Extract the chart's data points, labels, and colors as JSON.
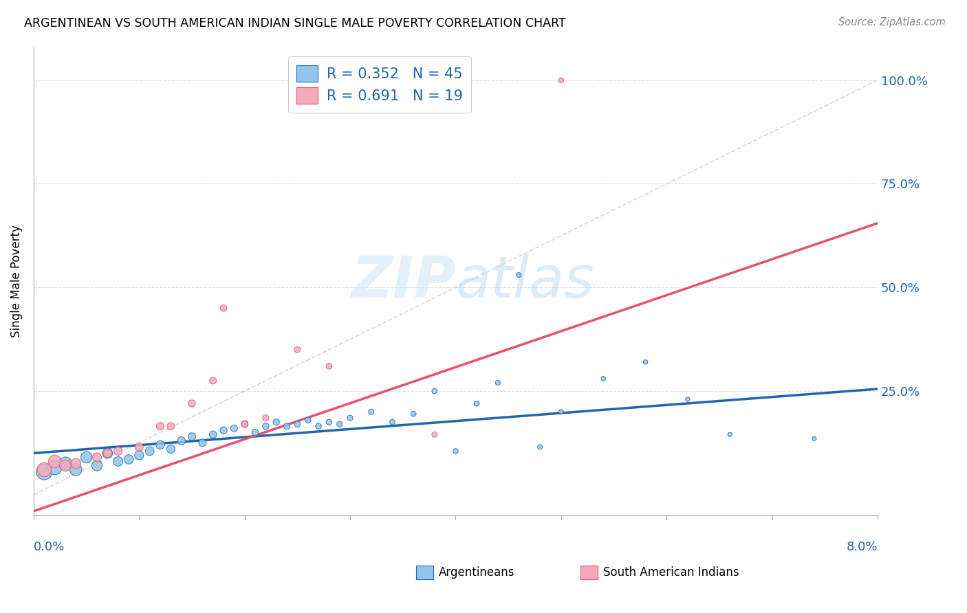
{
  "title": "ARGENTINEAN VS SOUTH AMERICAN INDIAN SINGLE MALE POVERTY CORRELATION CHART",
  "source": "Source: ZipAtlas.com",
  "ylabel": "Single Male Poverty",
  "xlim": [
    0.0,
    0.08
  ],
  "ylim": [
    -0.05,
    1.08
  ],
  "ytick_values": [
    0.0,
    0.25,
    0.5,
    0.75,
    1.0
  ],
  "ytick_labels": [
    "",
    "25.0%",
    "50.0%",
    "75.0%",
    "100.0%"
  ],
  "blue_color": "#92C5EC",
  "pink_color": "#F4AABB",
  "blue_line_color": "#2166AC",
  "pink_line_color": "#E8506A",
  "dashed_line_color": "#C8C8C8",
  "watermark_color": "#D0E8F8",
  "grid_color": "#DDDDDD",
  "argentineans": [
    [
      0.001,
      0.055
    ],
    [
      0.002,
      0.065
    ],
    [
      0.003,
      0.075
    ],
    [
      0.004,
      0.06
    ],
    [
      0.005,
      0.09
    ],
    [
      0.006,
      0.07
    ],
    [
      0.007,
      0.1
    ],
    [
      0.008,
      0.08
    ],
    [
      0.009,
      0.085
    ],
    [
      0.01,
      0.095
    ],
    [
      0.011,
      0.105
    ],
    [
      0.012,
      0.12
    ],
    [
      0.013,
      0.11
    ],
    [
      0.014,
      0.13
    ],
    [
      0.015,
      0.14
    ],
    [
      0.016,
      0.125
    ],
    [
      0.017,
      0.145
    ],
    [
      0.018,
      0.155
    ],
    [
      0.019,
      0.16
    ],
    [
      0.02,
      0.17
    ],
    [
      0.021,
      0.15
    ],
    [
      0.022,
      0.165
    ],
    [
      0.023,
      0.175
    ],
    [
      0.024,
      0.165
    ],
    [
      0.025,
      0.17
    ],
    [
      0.026,
      0.18
    ],
    [
      0.027,
      0.165
    ],
    [
      0.028,
      0.175
    ],
    [
      0.029,
      0.17
    ],
    [
      0.03,
      0.185
    ],
    [
      0.032,
      0.2
    ],
    [
      0.034,
      0.175
    ],
    [
      0.036,
      0.195
    ],
    [
      0.038,
      0.25
    ],
    [
      0.04,
      0.105
    ],
    [
      0.042,
      0.22
    ],
    [
      0.044,
      0.27
    ],
    [
      0.046,
      0.53
    ],
    [
      0.048,
      0.115
    ],
    [
      0.05,
      0.2
    ],
    [
      0.054,
      0.28
    ],
    [
      0.058,
      0.32
    ],
    [
      0.062,
      0.23
    ],
    [
      0.066,
      0.145
    ],
    [
      0.074,
      0.135
    ]
  ],
  "south_american_indians": [
    [
      0.001,
      0.06
    ],
    [
      0.002,
      0.08
    ],
    [
      0.003,
      0.07
    ],
    [
      0.004,
      0.075
    ],
    [
      0.006,
      0.09
    ],
    [
      0.007,
      0.1
    ],
    [
      0.008,
      0.105
    ],
    [
      0.01,
      0.115
    ],
    [
      0.012,
      0.165
    ],
    [
      0.013,
      0.165
    ],
    [
      0.015,
      0.22
    ],
    [
      0.017,
      0.275
    ],
    [
      0.018,
      0.45
    ],
    [
      0.02,
      0.17
    ],
    [
      0.022,
      0.185
    ],
    [
      0.025,
      0.35
    ],
    [
      0.028,
      0.31
    ],
    [
      0.038,
      0.145
    ],
    [
      0.05,
      1.0
    ]
  ],
  "blue_sizes": [
    280,
    220,
    190,
    160,
    140,
    120,
    110,
    100,
    95,
    90,
    85,
    80,
    75,
    70,
    65,
    62,
    58,
    55,
    52,
    50,
    48,
    46,
    44,
    42,
    40,
    38,
    37,
    36,
    35,
    34,
    33,
    32,
    31,
    30,
    29,
    28,
    27,
    26,
    25,
    24,
    23,
    22,
    21,
    20,
    19
  ],
  "pink_sizes": [
    220,
    180,
    140,
    110,
    90,
    80,
    75,
    70,
    65,
    60,
    55,
    50,
    48,
    45,
    43,
    40,
    38,
    32,
    28
  ],
  "blue_trendline": [
    0.0,
    0.08,
    0.1,
    0.255
  ],
  "pink_trendline": [
    0.0,
    0.08,
    -0.04,
    0.655
  ]
}
